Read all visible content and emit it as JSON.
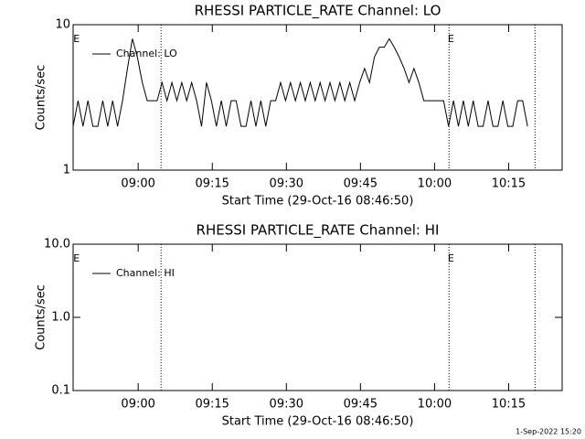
{
  "chart_data": [
    {
      "type": "line",
      "title": "RHESSI PARTICLE_RATE Channel: LO",
      "ylabel": "Counts/sec",
      "xlabel": "Start Time (29-Oct-16 08:46:50)",
      "log_y": true,
      "ylim": [
        1,
        10
      ],
      "yticks": [
        1,
        10
      ],
      "xlim": [
        0,
        99
      ],
      "xticks": [
        {
          "value": 13.17,
          "label": "09:00"
        },
        {
          "value": 28.17,
          "label": "09:15"
        },
        {
          "value": 43.17,
          "label": "09:30"
        },
        {
          "value": 58.17,
          "label": "09:45"
        },
        {
          "value": 73.17,
          "label": "10:00"
        },
        {
          "value": 88.17,
          "label": "10:15"
        }
      ],
      "x": [
        0,
        1,
        2,
        3,
        4,
        5,
        6,
        7,
        8,
        9,
        10,
        11,
        12,
        13,
        14,
        15,
        16,
        17,
        18,
        19,
        20,
        21,
        22,
        23,
        24,
        25,
        26,
        27,
        28,
        29,
        30,
        31,
        32,
        33,
        34,
        35,
        36,
        37,
        38,
        39,
        40,
        41,
        42,
        43,
        44,
        45,
        46,
        47,
        48,
        49,
        50,
        51,
        52,
        53,
        54,
        55,
        56,
        57,
        58,
        59,
        60,
        61,
        62,
        63,
        64,
        65,
        66,
        67,
        68,
        69,
        70,
        71,
        72,
        73,
        74,
        75,
        76,
        77,
        78,
        79,
        80,
        81,
        82,
        83,
        84,
        85,
        86,
        87,
        88,
        89,
        90,
        91,
        92
      ],
      "series": [
        {
          "name": "Channel: LO",
          "color": "#000000",
          "values": [
            2,
            3,
            2,
            3,
            2,
            2,
            3,
            2,
            3,
            2,
            3,
            5,
            8,
            6,
            4,
            3,
            3,
            3,
            4,
            3,
            4,
            3,
            4,
            3,
            4,
            3,
            2,
            4,
            3,
            2,
            3,
            2,
            3,
            3,
            2,
            2,
            3,
            2,
            3,
            2,
            3,
            3,
            4,
            3,
            4,
            3,
            4,
            3,
            4,
            3,
            4,
            3,
            4,
            3,
            4,
            3,
            4,
            3,
            4,
            5,
            4,
            6,
            7,
            7,
            8,
            7,
            6,
            5,
            4,
            5,
            4,
            3,
            3,
            3,
            3,
            3,
            2,
            3,
            2,
            3,
            2,
            3,
            2,
            2,
            3,
            2,
            2,
            3,
            2,
            2,
            3,
            3,
            2
          ]
        }
      ],
      "vlines": [
        17.8,
        76.1,
        93.5
      ],
      "annotations": [
        {
          "text": "E",
          "x": 0.7
        },
        {
          "text": "E",
          "x": 76.5
        }
      ]
    },
    {
      "type": "line",
      "title": "RHESSI PARTICLE_RATE Channel: HI",
      "ylabel": "Counts/sec",
      "xlabel": "Start Time (29-Oct-16 08:46:50)",
      "log_y": true,
      "ylim": [
        0.1,
        10
      ],
      "yticks": [
        {
          "value": 0.1,
          "label": "0.1"
        },
        {
          "value": 1,
          "label": "1.0"
        },
        {
          "value": 10,
          "label": "10.0"
        }
      ],
      "xlim": [
        0,
        99
      ],
      "xticks": [
        {
          "value": 13.17,
          "label": "09:00"
        },
        {
          "value": 28.17,
          "label": "09:15"
        },
        {
          "value": 43.17,
          "label": "09:30"
        },
        {
          "value": 58.17,
          "label": "09:45"
        },
        {
          "value": 73.17,
          "label": "10:00"
        },
        {
          "value": 88.17,
          "label": "10:15"
        }
      ],
      "x": [],
      "series": [
        {
          "name": "Channel: HI",
          "color": "#000000",
          "values": []
        }
      ],
      "vlines": [
        17.8,
        76.1,
        93.5
      ],
      "annotations": [
        {
          "text": "E",
          "x": 0.7
        },
        {
          "text": "E",
          "x": 76.5
        }
      ]
    }
  ],
  "footer": "1-Sep-2022 15:20"
}
